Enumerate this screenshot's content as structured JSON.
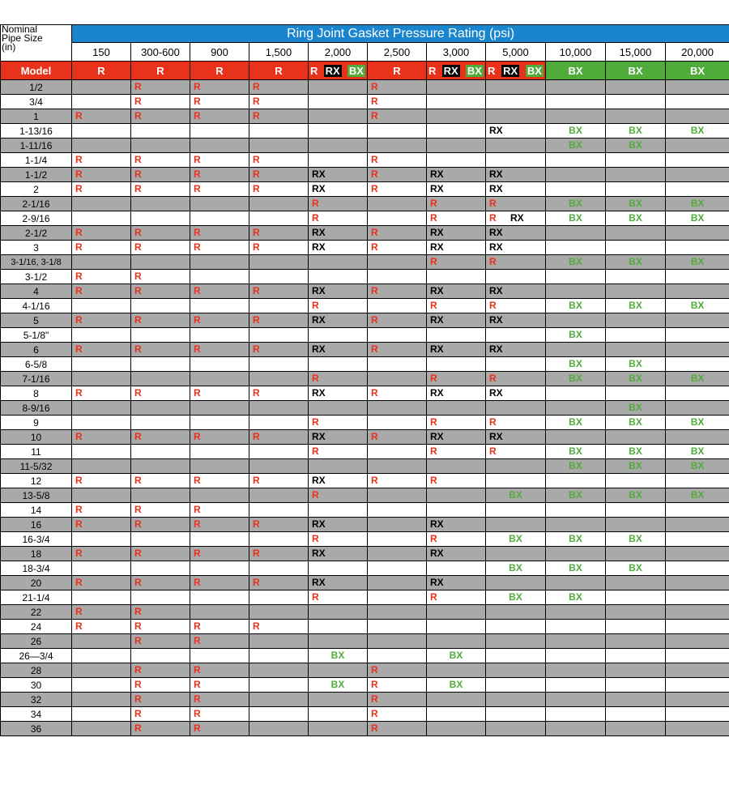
{
  "header": {
    "size_label": "Nominal\nPipe Size\n(in)",
    "title": "Ring Joint Gasket Pressure Rating (psi)",
    "ratings": [
      "150",
      "300-600",
      "900",
      "1,500",
      "2,000",
      "2,500",
      "3,000",
      "5,000",
      "10,000",
      "15,000",
      "20,000"
    ]
  },
  "model_row": {
    "label": "Model",
    "cells": [
      {
        "type": "R",
        "text": "R"
      },
      {
        "type": "R",
        "text": "R"
      },
      {
        "type": "R",
        "text": "R"
      },
      {
        "type": "R",
        "text": "R"
      },
      {
        "type": "multi",
        "parts": [
          "R",
          "RX",
          "BX"
        ]
      },
      {
        "type": "R",
        "text": "R"
      },
      {
        "type": "multi",
        "parts": [
          "R",
          "RX",
          "BX"
        ]
      },
      {
        "type": "multi",
        "parts": [
          "R",
          "RX",
          "BX"
        ]
      },
      {
        "type": "BX",
        "text": "BX"
      },
      {
        "type": "BX",
        "text": "BX"
      },
      {
        "type": "BX",
        "text": "BX"
      }
    ]
  },
  "colors": {
    "blue": "#1a85cf",
    "red": "#e8321c",
    "green": "#4fac3a",
    "gray": "#a9a9a9",
    "black": "#000000"
  },
  "rows": [
    {
      "size": "1/2",
      "cells": [
        "",
        "R",
        "R",
        "R",
        "",
        "R",
        "",
        "",
        "",
        "",
        ""
      ]
    },
    {
      "size": "3/4",
      "cells": [
        "",
        "R",
        "R",
        "R",
        "",
        "R",
        "",
        "",
        "",
        "",
        ""
      ]
    },
    {
      "size": "1",
      "cells": [
        "R",
        "R",
        "R",
        "R",
        "",
        "R",
        "",
        "",
        "",
        "",
        ""
      ]
    },
    {
      "size": "1-13/16",
      "cells": [
        "",
        "",
        "",
        "",
        "",
        "",
        "",
        "RX",
        "BX",
        "BX",
        "BX"
      ]
    },
    {
      "size": "1-11/16",
      "cells": [
        "",
        "",
        "",
        "",
        "",
        "",
        "",
        "",
        "BX",
        "BX",
        ""
      ]
    },
    {
      "size": "1-1/4",
      "cells": [
        "R",
        "R",
        "R",
        "R",
        "",
        "R",
        "",
        "",
        "",
        "",
        ""
      ]
    },
    {
      "size": "1-1/2",
      "cells": [
        "R",
        "R",
        "R",
        "R",
        "RX",
        "R",
        "RX",
        "RX",
        "",
        "",
        ""
      ]
    },
    {
      "size": "2",
      "cells": [
        "R",
        "R",
        "R",
        "R",
        "RX",
        "R",
        "RX",
        "RX",
        "",
        "",
        ""
      ]
    },
    {
      "size": "2-1/16",
      "cells": [
        "",
        "",
        "",
        "",
        "R",
        "",
        "R",
        "R",
        "BX",
        "BX",
        "BX"
      ]
    },
    {
      "size": "2-9/16",
      "cells": [
        "",
        "",
        "",
        "",
        "R",
        "",
        "R",
        "R|RX",
        "BX",
        "BX",
        "BX"
      ]
    },
    {
      "size": "2-1/2",
      "cells": [
        "R",
        "R",
        "R",
        "R",
        "RX",
        "R",
        "RX",
        "RX",
        "",
        "",
        ""
      ]
    },
    {
      "size": "3",
      "cells": [
        "R",
        "R",
        "R",
        "R",
        "RX",
        "R",
        "RX",
        "RX",
        "",
        "",
        ""
      ]
    },
    {
      "size": "3-1/16, 3-1/8",
      "cells": [
        "",
        "",
        "",
        "",
        "",
        "",
        "R",
        "R",
        "BX",
        "BX",
        "BX"
      ]
    },
    {
      "size": "3-1/2",
      "cells": [
        "R",
        "R",
        "",
        "",
        "",
        "",
        "",
        "",
        "",
        "",
        ""
      ]
    },
    {
      "size": "4",
      "cells": [
        "R",
        "R",
        "R",
        "R",
        "RX",
        "R",
        "RX",
        "RX",
        "",
        "",
        ""
      ]
    },
    {
      "size": "4-1/16",
      "cells": [
        "",
        "",
        "",
        "",
        "R",
        "",
        "R",
        "R",
        "BX",
        "BX",
        "BX"
      ]
    },
    {
      "size": "5",
      "cells": [
        "R",
        "R",
        "R",
        "R",
        "RX",
        "R",
        "RX",
        "RX",
        "",
        "",
        ""
      ]
    },
    {
      "size": "5-1/8\"",
      "cells": [
        "",
        "",
        "",
        "",
        "",
        "",
        "",
        "",
        "BX",
        "",
        ""
      ]
    },
    {
      "size": "6",
      "cells": [
        "R",
        "R",
        "R",
        "R",
        "RX",
        "R",
        "RX",
        "RX",
        "",
        "",
        ""
      ]
    },
    {
      "size": "6-5/8",
      "cells": [
        "",
        "",
        "",
        "",
        "",
        "",
        "",
        "",
        "BX",
        "BX",
        ""
      ]
    },
    {
      "size": "7-1/16",
      "cells": [
        "",
        "",
        "",
        "",
        "R",
        "",
        "R",
        "R",
        "BX",
        "BX",
        "BX"
      ]
    },
    {
      "size": "8",
      "cells": [
        "R",
        "R",
        "R",
        "R",
        "RX",
        "R",
        "RX",
        "RX",
        "",
        "",
        ""
      ]
    },
    {
      "size": "8-9/16",
      "cells": [
        "",
        "",
        "",
        "",
        "",
        "",
        "",
        "",
        "",
        "BX",
        ""
      ]
    },
    {
      "size": "9",
      "cells": [
        "",
        "",
        "",
        "",
        "R",
        "",
        "R",
        "R",
        "BX",
        "BX",
        "BX"
      ]
    },
    {
      "size": "10",
      "cells": [
        "R",
        "R",
        "R",
        "R",
        "RX",
        "R",
        "RX",
        "RX",
        "",
        "",
        ""
      ]
    },
    {
      "size": "11",
      "cells": [
        "",
        "",
        "",
        "",
        "R",
        "",
        "R",
        "R",
        "BX",
        "BX",
        "BX"
      ]
    },
    {
      "size": "11-5/32",
      "cells": [
        "",
        "",
        "",
        "",
        "",
        "",
        "",
        "",
        "BX",
        "BX",
        "BX"
      ]
    },
    {
      "size": "12",
      "cells": [
        "R",
        "R",
        "R",
        "R",
        "RX",
        "R",
        "R",
        "",
        "",
        "",
        ""
      ]
    },
    {
      "size": "13-5/8",
      "cells": [
        "",
        "",
        "",
        "",
        "R",
        "",
        "",
        "BX",
        "BX",
        "BX",
        "BX"
      ]
    },
    {
      "size": "14",
      "cells": [
        "R",
        "R",
        "R",
        "",
        "",
        "",
        "",
        "",
        "",
        "",
        ""
      ]
    },
    {
      "size": "16",
      "cells": [
        "R",
        "R",
        "R",
        "R",
        "RX",
        "",
        "RX",
        "",
        "",
        "",
        ""
      ]
    },
    {
      "size": "16-3/4",
      "cells": [
        "",
        "",
        "",
        "",
        "R",
        "",
        "R",
        "BX",
        "BX",
        "BX",
        ""
      ]
    },
    {
      "size": "18",
      "cells": [
        "R",
        "R",
        "R",
        "R",
        "RX",
        "",
        "RX",
        "",
        "",
        "",
        ""
      ]
    },
    {
      "size": "18-3/4",
      "cells": [
        "",
        "",
        "",
        "",
        "",
        "",
        "",
        "BX",
        "BX",
        "BX",
        ""
      ]
    },
    {
      "size": "20",
      "cells": [
        "R",
        "R",
        "R",
        "R",
        "RX",
        "",
        "RX",
        "",
        "",
        "",
        ""
      ]
    },
    {
      "size": "21-1/4",
      "cells": [
        "",
        "",
        "",
        "",
        "R",
        "",
        "R",
        "BX",
        "BX",
        "",
        ""
      ]
    },
    {
      "size": "22",
      "cells": [
        "R",
        "R",
        "",
        "",
        "",
        "",
        "",
        "",
        "",
        "",
        ""
      ]
    },
    {
      "size": "24",
      "cells": [
        "R",
        "R",
        "R",
        "R",
        "",
        "",
        "",
        "",
        "",
        "",
        ""
      ]
    },
    {
      "size": "26",
      "cells": [
        "",
        "R",
        "R",
        "",
        "",
        "",
        "",
        "",
        "",
        "",
        ""
      ]
    },
    {
      "size": "26—3/4",
      "cells": [
        "",
        "",
        "",
        "",
        "BX",
        "",
        "BX",
        "",
        "",
        "",
        ""
      ]
    },
    {
      "size": "28",
      "cells": [
        "",
        "R",
        "R",
        "",
        "",
        "R",
        "",
        "",
        "",
        "",
        ""
      ]
    },
    {
      "size": "30",
      "cells": [
        "",
        "R",
        "R",
        "",
        "BX",
        "R",
        "BX",
        "",
        "",
        "",
        ""
      ]
    },
    {
      "size": "32",
      "cells": [
        "",
        "R",
        "R",
        "",
        "",
        "R",
        "",
        "",
        "",
        "",
        ""
      ]
    },
    {
      "size": "34",
      "cells": [
        "",
        "R",
        "R",
        "",
        "",
        "R",
        "",
        "",
        "",
        "",
        ""
      ]
    },
    {
      "size": "36",
      "cells": [
        "",
        "R",
        "R",
        "",
        "",
        "R",
        "",
        "",
        "",
        "",
        ""
      ]
    }
  ]
}
